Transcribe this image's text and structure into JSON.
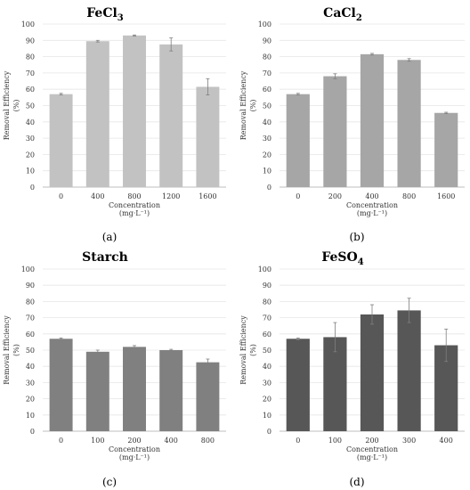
{
  "chart_data": [
    {
      "type": "bar",
      "panel_label": "(a)",
      "title": "FeCl",
      "title_subscript": "3",
      "categories": [
        "0",
        "400",
        "800",
        "1200",
        "1600"
      ],
      "values": [
        57,
        89.5,
        93,
        87.5,
        61.5
      ],
      "errors": [
        0.5,
        0.5,
        0.3,
        4,
        5
      ],
      "ylabel": [
        "Removal Efficiency",
        "(%)"
      ],
      "xlabel": [
        "Concentration",
        "(mg·L⁻¹)"
      ],
      "yticks": [
        "0",
        "10",
        "20",
        "30",
        "40",
        "50",
        "60",
        "70",
        "80",
        "90",
        "100"
      ],
      "ylim": [
        0,
        100
      ],
      "grid": true,
      "bar_color": "#c2c2c2"
    },
    {
      "type": "bar",
      "panel_label": "(b)",
      "title": "CaCl",
      "title_subscript": "2",
      "categories": [
        "0",
        "200",
        "400",
        "800",
        "1600"
      ],
      "values": [
        57,
        68,
        81.5,
        78,
        45.5
      ],
      "errors": [
        0.5,
        1.5,
        0.5,
        0.8,
        0.4
      ],
      "ylabel": [
        "Removal Efficiency",
        "(%)"
      ],
      "xlabel": [
        "Concentration",
        "(mg·L⁻¹)"
      ],
      "yticks": [
        "0",
        "10",
        "20",
        "30",
        "40",
        "50",
        "60",
        "70",
        "80",
        "90",
        "100"
      ],
      "ylim": [
        0,
        100
      ],
      "grid": true,
      "bar_color": "#a6a6a6"
    },
    {
      "type": "bar",
      "panel_label": "(c)",
      "title": "Starch",
      "title_subscript": "",
      "categories": [
        "0",
        "100",
        "200",
        "400",
        "800"
      ],
      "values": [
        57,
        49,
        52,
        50,
        42.5
      ],
      "errors": [
        0.5,
        1,
        0.8,
        0.5,
        2
      ],
      "ylabel": [
        "Removal Efficiency",
        "(%)"
      ],
      "xlabel": [
        "Concentration",
        "(mg·L⁻¹)"
      ],
      "yticks": [
        "0",
        "10",
        "20",
        "30",
        "40",
        "50",
        "60",
        "70",
        "80",
        "90",
        "100"
      ],
      "ylim": [
        0,
        100
      ],
      "grid": true,
      "bar_color": "#808080"
    },
    {
      "type": "bar",
      "panel_label": "(d)",
      "title": "FeSO",
      "title_subscript": "4",
      "categories": [
        "0",
        "100",
        "200",
        "300",
        "400"
      ],
      "values": [
        57,
        58,
        72,
        74.5,
        53
      ],
      "errors": [
        0.5,
        9,
        6,
        7.5,
        10
      ],
      "ylabel": [
        "Removal Efficiency",
        "(%)"
      ],
      "xlabel": [
        "Concentration",
        "(mg·L⁻¹)"
      ],
      "yticks": [
        "0",
        "10",
        "20",
        "30",
        "40",
        "50",
        "60",
        "70",
        "80",
        "90",
        "100"
      ],
      "ylim": [
        0,
        100
      ],
      "grid": true,
      "bar_color": "#575757"
    }
  ]
}
